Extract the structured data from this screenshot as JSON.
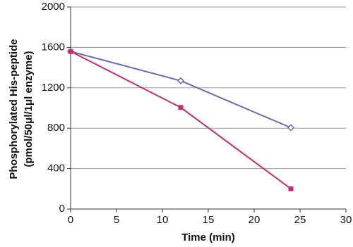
{
  "chart_data": {
    "type": "line",
    "x_label": "Time (min)",
    "y_label": [
      "Phosphorylated His-peptide",
      "(pmol/50μl/1μl enzyme)"
    ],
    "x": [
      0,
      12,
      24
    ],
    "series": [
      {
        "color": "#6a6ab0",
        "marker": "diamond",
        "values": [
          1560,
          1270,
          805
        ]
      },
      {
        "color": "#c0306c",
        "marker": "square",
        "values": [
          1560,
          1005,
          200
        ]
      }
    ],
    "xlim": [
      0,
      30
    ],
    "xticks": [
      0,
      5,
      10,
      15,
      20,
      25,
      30
    ],
    "ylim": [
      0,
      2000
    ],
    "yticks": [
      0,
      400,
      800,
      1200,
      1600,
      2000
    ],
    "grid": true
  }
}
